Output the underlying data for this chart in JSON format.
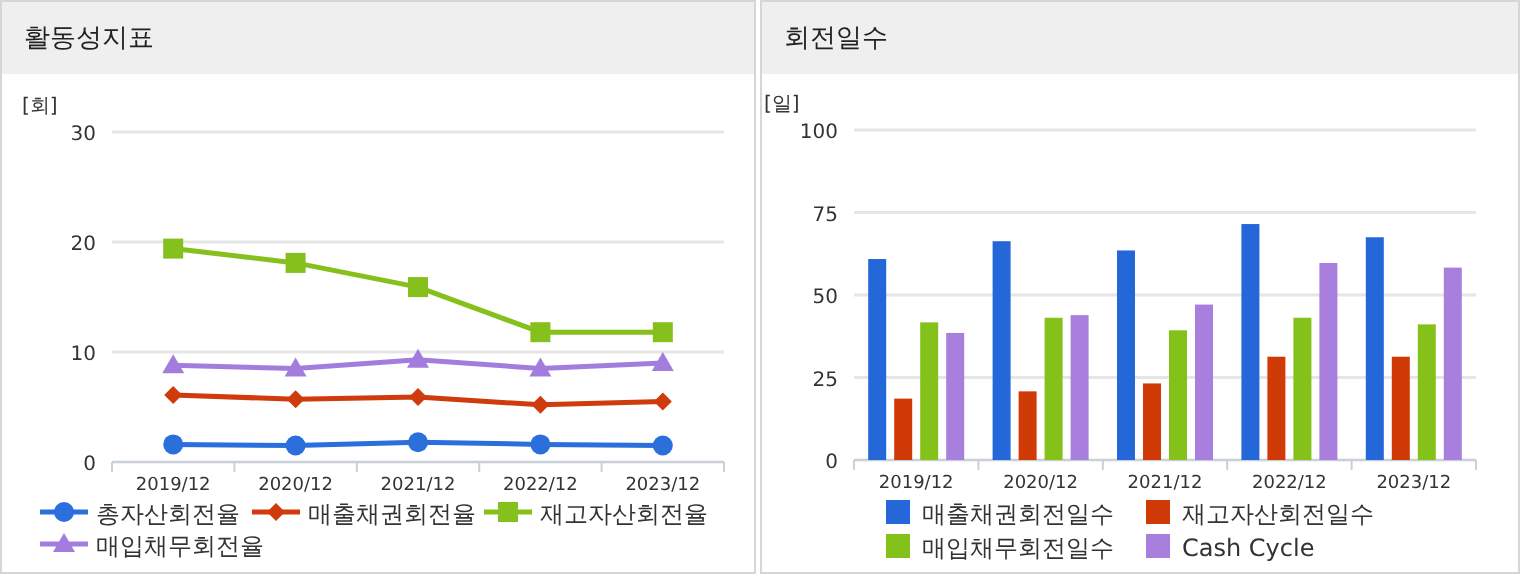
{
  "chart_data": [
    {
      "type": "line",
      "title": "활동성지표",
      "ylabel": "[회]",
      "categories": [
        "2019/12",
        "2020/12",
        "2021/12",
        "2022/12",
        "2023/12"
      ],
      "ylim": [
        0,
        30
      ],
      "yticks": [
        0,
        10,
        20,
        30
      ],
      "grid": "y",
      "legend": "bottom",
      "series": [
        {
          "name": "총자산회전율",
          "color": "#2a6fdb",
          "marker": "circle",
          "values": [
            1.6,
            1.5,
            1.8,
            1.6,
            1.5
          ]
        },
        {
          "name": "매출채권회전율",
          "color": "#cf3b0c",
          "marker": "diamond",
          "values": [
            6.1,
            5.7,
            5.9,
            5.2,
            5.5
          ]
        },
        {
          "name": "재고자산회전율",
          "color": "#86c01c",
          "marker": "square",
          "values": [
            19.4,
            18.1,
            15.9,
            11.8,
            11.8
          ]
        },
        {
          "name": "매입채무회전율",
          "color": "#a37ddd",
          "marker": "triangle",
          "values": [
            8.8,
            8.5,
            9.3,
            8.5,
            9.0
          ]
        }
      ]
    },
    {
      "type": "bar",
      "title": "회전일수",
      "ylabel": "[일]",
      "categories": [
        "2019/12",
        "2020/12",
        "2021/12",
        "2022/12",
        "2023/12"
      ],
      "ylim": [
        0,
        100
      ],
      "yticks": [
        0,
        25,
        50,
        75,
        100
      ],
      "grid": "y",
      "legend": "bottom",
      "series": [
        {
          "name": "매출채권회전일수",
          "color": "#2467d8",
          "values": [
            60.9,
            66.3,
            63.5,
            71.5,
            67.5
          ]
        },
        {
          "name": "재고자산회전일수",
          "color": "#d03a06",
          "values": [
            18.6,
            20.8,
            23.2,
            31.3,
            31.3
          ]
        },
        {
          "name": "매입채무회전일수",
          "color": "#85c11b",
          "values": [
            41.7,
            43.1,
            39.3,
            43.1,
            41.1
          ]
        },
        {
          "name": "Cash Cycle",
          "color": "#a87fdc",
          "values": [
            38.5,
            43.9,
            47.1,
            59.7,
            58.3
          ]
        }
      ]
    }
  ]
}
